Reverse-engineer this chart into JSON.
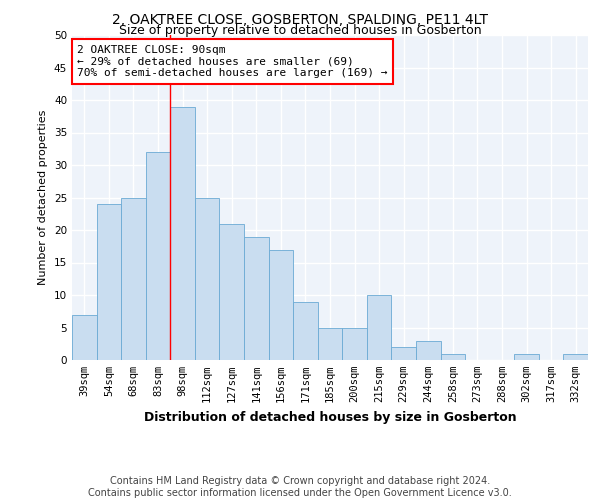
{
  "title": "2, OAKTREE CLOSE, GOSBERTON, SPALDING, PE11 4LT",
  "subtitle": "Size of property relative to detached houses in Gosberton",
  "xlabel": "Distribution of detached houses by size in Gosberton",
  "ylabel": "Number of detached properties",
  "categories": [
    "39sqm",
    "54sqm",
    "68sqm",
    "83sqm",
    "98sqm",
    "112sqm",
    "127sqm",
    "141sqm",
    "156sqm",
    "171sqm",
    "185sqm",
    "200sqm",
    "215sqm",
    "229sqm",
    "244sqm",
    "258sqm",
    "273sqm",
    "288sqm",
    "302sqm",
    "317sqm",
    "332sqm"
  ],
  "values": [
    7,
    24,
    25,
    32,
    39,
    25,
    21,
    19,
    17,
    9,
    5,
    5,
    10,
    2,
    3,
    1,
    0,
    0,
    1,
    0,
    1
  ],
  "bar_color": "#c9ddf0",
  "bar_edge_color": "#6aaad4",
  "annotation_line1": "2 OAKTREE CLOSE: 90sqm",
  "annotation_line2": "← 29% of detached houses are smaller (69)",
  "annotation_line3": "70% of semi-detached houses are larger (169) →",
  "red_line_x": 3.5,
  "ylim": [
    0,
    50
  ],
  "yticks": [
    0,
    5,
    10,
    15,
    20,
    25,
    30,
    35,
    40,
    45,
    50
  ],
  "footer_line1": "Contains HM Land Registry data © Crown copyright and database right 2024.",
  "footer_line2": "Contains public sector information licensed under the Open Government Licence v3.0.",
  "background_color": "#eef3fa",
  "grid_color": "#ffffff",
  "title_fontsize": 10,
  "subtitle_fontsize": 9,
  "ylabel_fontsize": 8,
  "xlabel_fontsize": 9,
  "tick_fontsize": 7.5,
  "annotation_fontsize": 8,
  "footer_fontsize": 7
}
